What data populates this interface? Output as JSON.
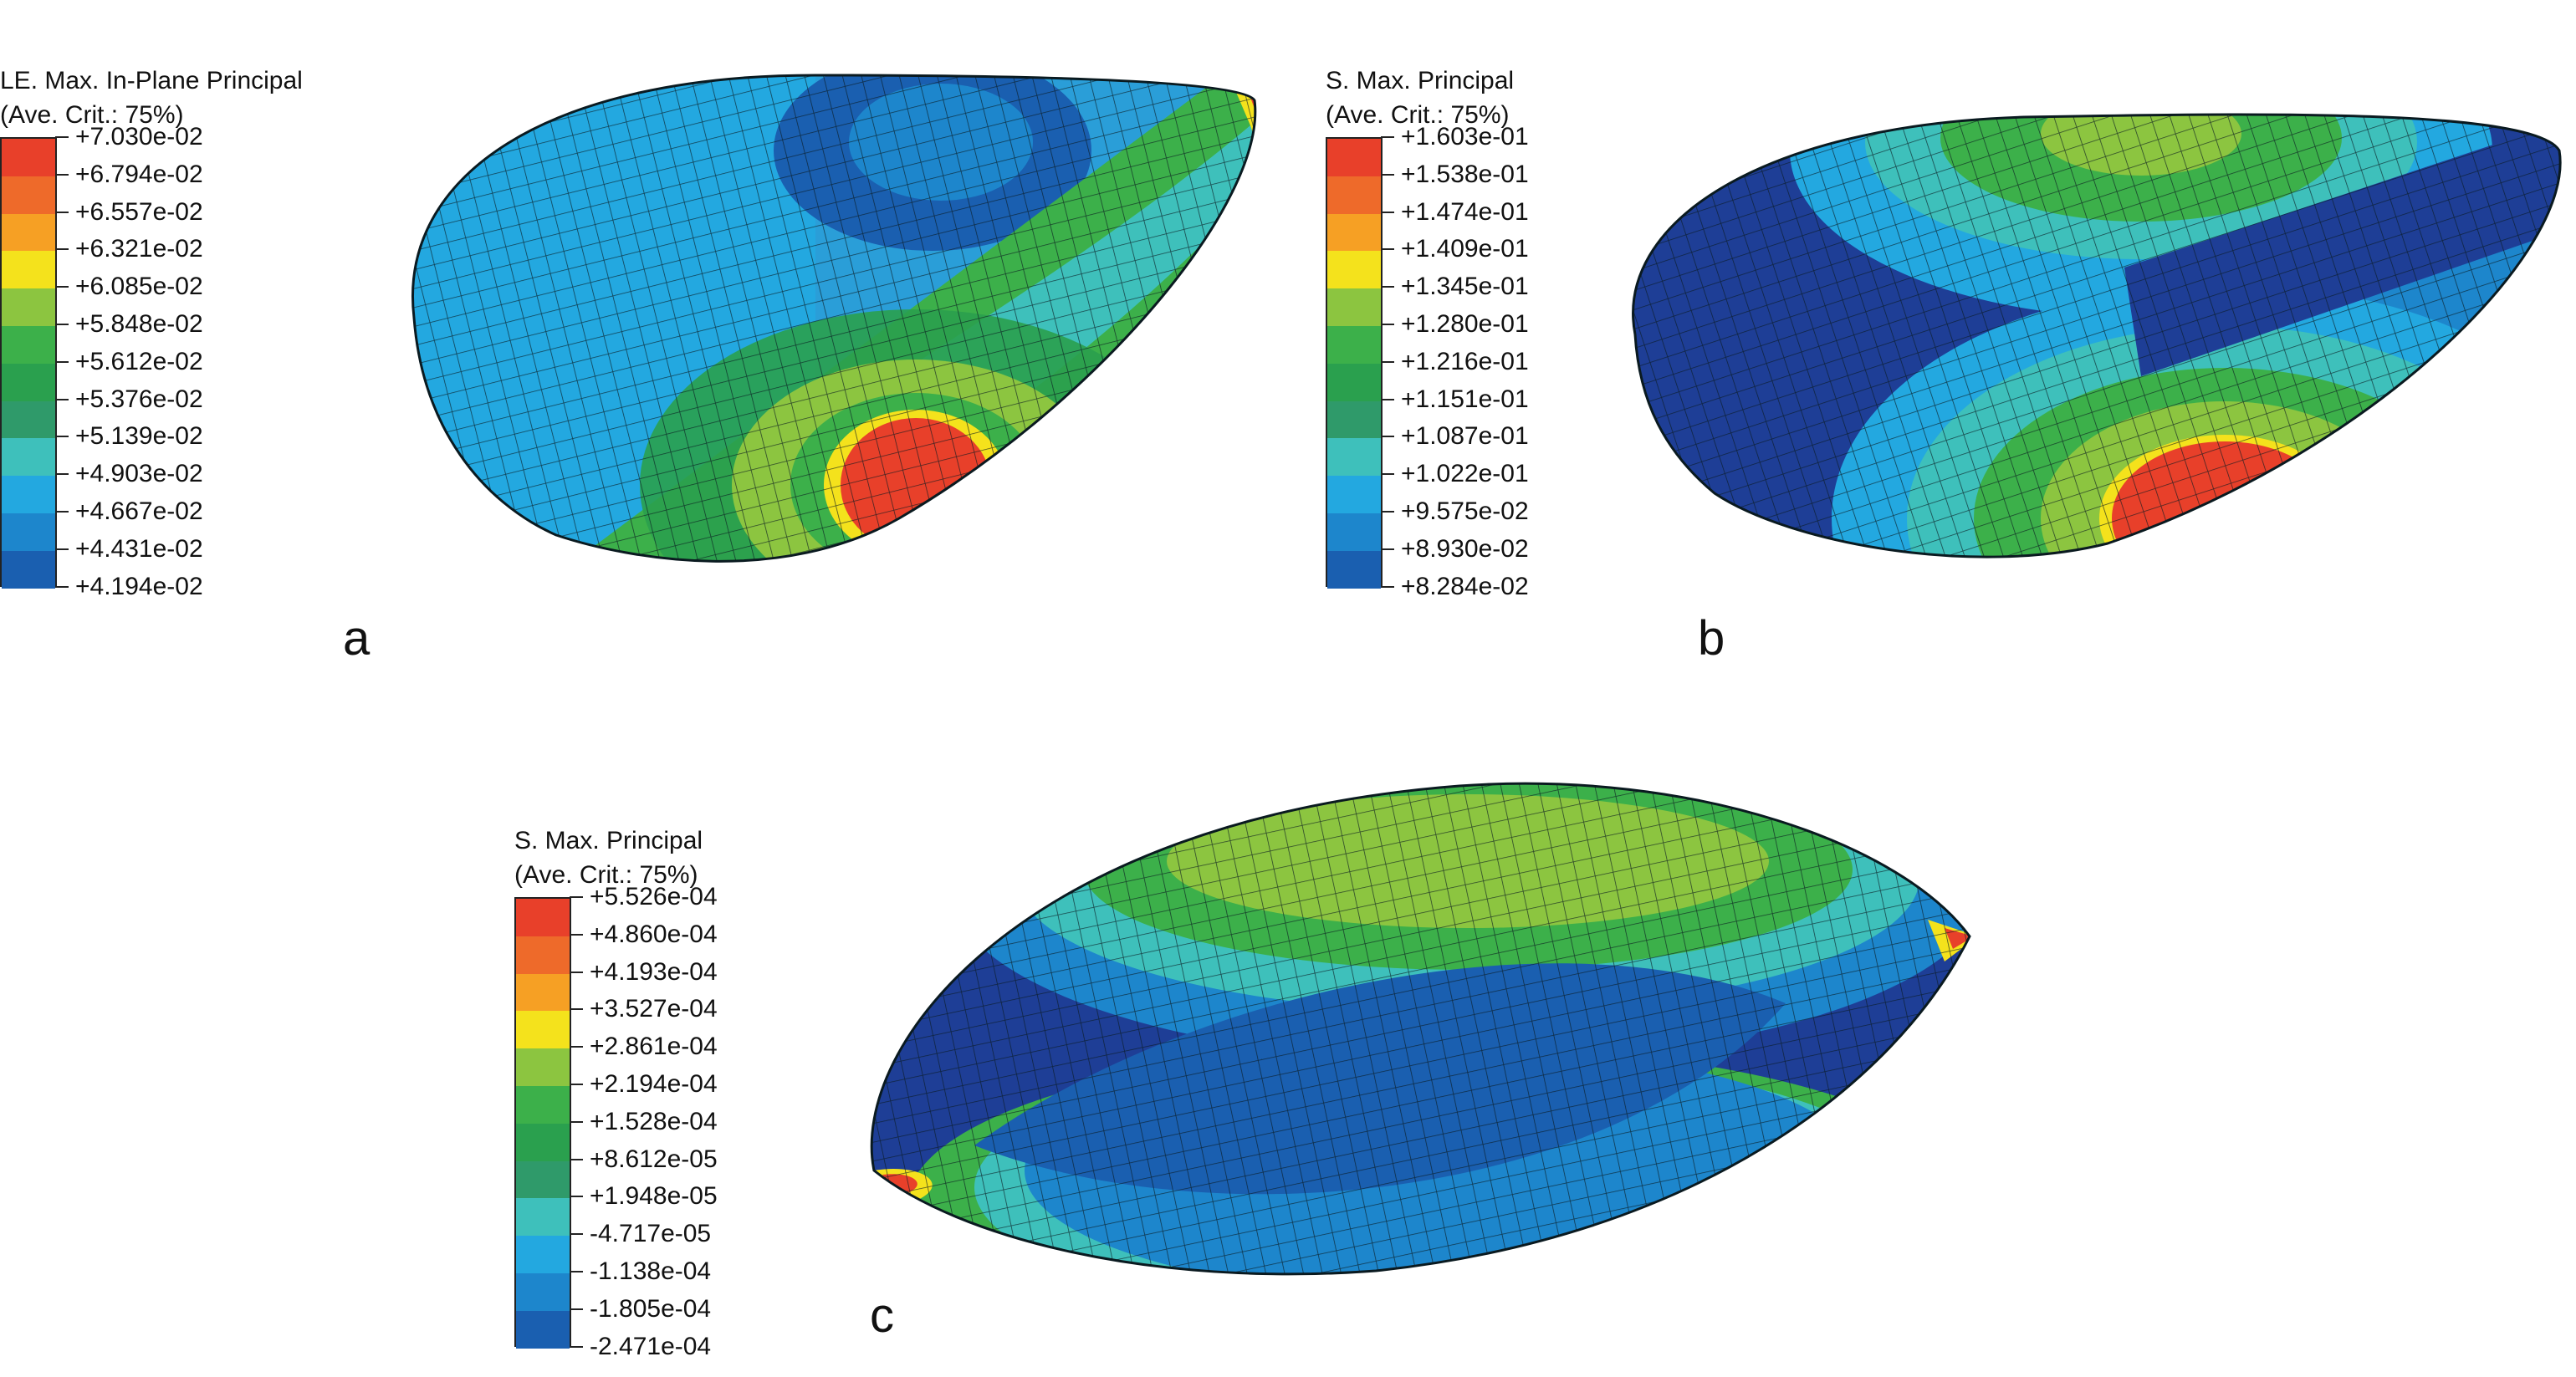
{
  "panels": [
    {
      "id": "a",
      "label": "a",
      "legend": {
        "title": "LE. Max. In-Plane Principal",
        "subtitle": "(Ave. Crit.: 75%)",
        "values": [
          "+7.030e-02",
          "+6.794e-02",
          "+6.557e-02",
          "+6.321e-02",
          "+6.085e-02",
          "+5.848e-02",
          "+5.612e-02",
          "+5.376e-02",
          "+5.139e-02",
          "+4.903e-02",
          "+4.667e-02",
          "+4.431e-02",
          "+4.194e-02"
        ]
      }
    },
    {
      "id": "b",
      "label": "b",
      "legend": {
        "title": "S. Max. Principal",
        "subtitle": "(Ave. Crit.: 75%)",
        "values": [
          "+1.603e-01",
          "+1.538e-01",
          "+1.474e-01",
          "+1.409e-01",
          "+1.345e-01",
          "+1.280e-01",
          "+1.216e-01",
          "+1.151e-01",
          "+1.087e-01",
          "+1.022e-01",
          "+9.575e-02",
          "+8.930e-02",
          "+8.284e-02"
        ]
      }
    },
    {
      "id": "c",
      "label": "c",
      "legend": {
        "title": "S. Max. Principal",
        "subtitle": "(Ave. Crit.: 75%)",
        "values": [
          "+5.526e-04",
          "+4.860e-04",
          "+4.193e-04",
          "+3.527e-04",
          "+2.861e-04",
          "+2.194e-04",
          "+1.528e-04",
          "+8.612e-05",
          "+1.948e-05",
          "-4.717e-05",
          "-1.138e-04",
          "-1.805e-04",
          "-2.471e-04"
        ]
      }
    }
  ],
  "colormap": [
    "#e8402a",
    "#ee6a2a",
    "#f6a024",
    "#f4e21c",
    "#8cc540",
    "#3cb04a",
    "#2aa04e",
    "#2f9a6a",
    "#3ec0bb",
    "#23a8e0",
    "#1d86cc",
    "#1a5fb0",
    "#1e3e96"
  ]
}
